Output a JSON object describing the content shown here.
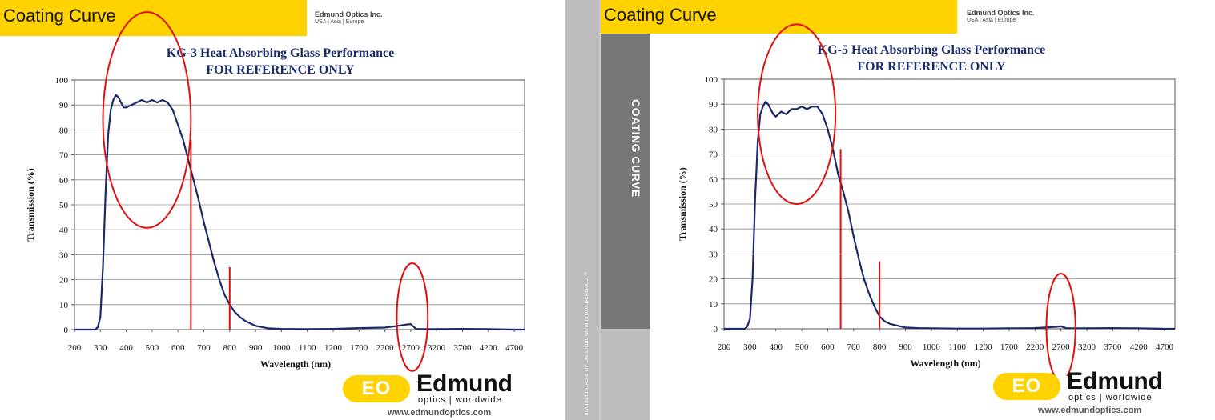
{
  "left_panel": {
    "header_label": "Coating Curve",
    "company": "Edmund Optics Inc.",
    "regions": "USA | Asia | Europe",
    "title_line1": "KG-3 Heat Absorbing Glass Performance",
    "title_line2": "FOR REFERENCE ONLY",
    "side_strip_text": "COATING CURVE",
    "copyright": "© COPYRIGHT 2009 EDMUND OPTICS INC. ALL RIGHTS RESERVED",
    "logo_word": "Edmund",
    "logo_tagline": "optics | worldwide",
    "logo_url": "www.edmundoptics.com",
    "logo_mark": "EO"
  },
  "right_panel": {
    "header_label": "Coating Curve",
    "company": "Edmund Optics Inc.",
    "regions": "USA | Asia | Europe",
    "title_line1": "KG-5 Heat Absorbing Glass Performance",
    "title_line2": "FOR REFERENCE ONLY",
    "side_strip_text": "COATING CURVE",
    "logo_word": "Edmund",
    "logo_tagline": "optics | worldwide",
    "logo_url": "www.edmundoptics.com",
    "logo_mark": "EO"
  },
  "colors": {
    "brand_yellow": "#ffd200",
    "curve": "#1b2a6b",
    "annotation_red": "#e01010",
    "strip_gray": "#777777"
  },
  "chart_data": [
    {
      "type": "line",
      "title": "KG-3 Heat Absorbing Glass Performance FOR REFERENCE ONLY",
      "xlabel": "Wavelength (nm)",
      "ylabel": "Transmission (%)",
      "x_tick_labels": [
        "200",
        "300",
        "400",
        "500",
        "600",
        "700",
        "800",
        "900",
        "1000",
        "1100",
        "1200",
        "1700",
        "2200",
        "2700",
        "3200",
        "3700",
        "4200",
        "4700"
      ],
      "y_ticks": [
        0,
        10,
        20,
        30,
        40,
        50,
        60,
        70,
        80,
        90,
        100
      ],
      "ylim": [
        0,
        100
      ],
      "grid": true,
      "x_scale": "piecewise: 100 nm steps from 200 to 1200, then 500 nm steps to 4700",
      "series": [
        {
          "x": [
            200,
            250,
            280,
            290,
            300,
            310,
            320,
            330,
            340,
            350,
            360,
            370,
            380,
            390,
            400,
            420,
            440,
            460,
            480,
            500,
            520,
            540,
            560,
            580,
            600,
            620,
            640,
            660,
            680,
            700,
            720,
            740,
            760,
            780,
            800,
            820,
            840,
            860,
            880,
            900,
            950,
            1000,
            1100,
            1200,
            1700,
            2200,
            2450,
            2600,
            2700,
            2800,
            2900,
            3200,
            3700,
            4200,
            4700,
            4900
          ],
          "y": [
            0,
            0,
            0,
            1,
            5,
            25,
            55,
            78,
            88,
            92,
            94,
            93,
            91,
            89,
            89,
            90,
            91,
            92,
            91,
            92,
            91,
            92,
            91,
            88,
            82,
            76,
            68,
            60,
            52,
            43,
            35,
            27,
            20,
            14,
            10,
            7,
            5,
            3.5,
            2.5,
            1.5,
            0.5,
            0.3,
            0.2,
            0.3,
            0.6,
            0.8,
            1.5,
            2,
            2.2,
            0.3,
            0.2,
            0.2,
            0.3,
            0.2,
            0,
            0
          ]
        }
      ],
      "annotations": [
        {
          "kind": "circle",
          "cx": 480,
          "cy": 84,
          "rx": 170,
          "ry": 12
        },
        {
          "kind": "circle",
          "cx": 2730,
          "cy": 5,
          "rx": 300,
          "ry": 6
        },
        {
          "kind": "vline",
          "x": 650,
          "from": 0,
          "to": 76
        },
        {
          "kind": "vline",
          "x": 800,
          "from": 0,
          "to": 25
        }
      ]
    },
    {
      "type": "line",
      "title": "KG-5 Heat Absorbing Glass Performance FOR REFERENCE ONLY",
      "xlabel": "Wavelength (nm)",
      "ylabel": "Transmission (%)",
      "x_tick_labels": [
        "200",
        "300",
        "400",
        "500",
        "600",
        "700",
        "800",
        "900",
        "1000",
        "1100",
        "1200",
        "1700",
        "2200",
        "2700",
        "3200",
        "3700",
        "4200",
        "4700"
      ],
      "y_ticks": [
        0,
        10,
        20,
        30,
        40,
        50,
        60,
        70,
        80,
        90,
        100
      ],
      "ylim": [
        0,
        100
      ],
      "grid": true,
      "x_scale": "piecewise: 100 nm steps from 200 to 1200, then 500 nm steps to 4700",
      "series": [
        {
          "x": [
            200,
            250,
            280,
            290,
            300,
            310,
            320,
            330,
            340,
            350,
            360,
            370,
            380,
            390,
            400,
            420,
            440,
            460,
            480,
            500,
            520,
            540,
            560,
            580,
            600,
            620,
            640,
            660,
            680,
            700,
            720,
            740,
            760,
            780,
            800,
            820,
            840,
            860,
            880,
            900,
            950,
            1000,
            1100,
            1200,
            1700,
            2200,
            2450,
            2600,
            2700,
            2800,
            2900,
            3200,
            3700,
            4200,
            4700,
            4900
          ],
          "y": [
            0,
            0,
            0,
            1,
            4,
            20,
            52,
            75,
            86,
            89,
            91,
            90,
            88,
            86,
            85,
            87,
            86,
            88,
            88,
            89,
            88,
            89,
            89,
            86,
            80,
            72,
            62,
            55,
            47,
            37,
            28,
            20,
            14,
            9,
            5,
            3,
            2,
            1.5,
            1,
            0.5,
            0.3,
            0.2,
            0.1,
            0.1,
            0.2,
            0.3,
            0.6,
            0.8,
            1,
            0.3,
            0.2,
            0.2,
            0.3,
            0.2,
            0,
            0
          ]
        }
      ],
      "annotations": [
        {
          "kind": "circle",
          "cx": 480,
          "cy": 86,
          "rx": 150,
          "ry": 10
        },
        {
          "kind": "circle",
          "cx": 2700,
          "cy": 0.5,
          "rx": 280,
          "ry": 6
        },
        {
          "kind": "vline",
          "x": 650,
          "from": 0,
          "to": 72
        },
        {
          "kind": "vline",
          "x": 800,
          "from": 0,
          "to": 27
        }
      ]
    }
  ]
}
